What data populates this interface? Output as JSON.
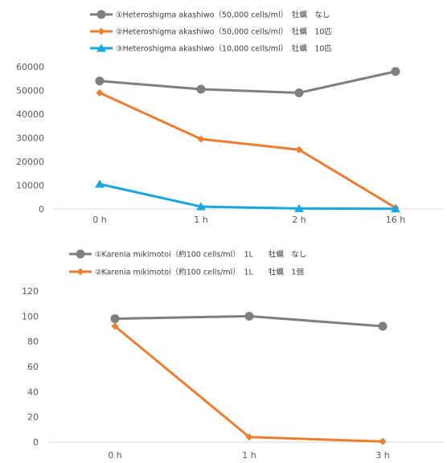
{
  "chart_data": [
    {
      "type": "line",
      "categories": [
        "0 h",
        "1 h",
        "2 h",
        "16 h"
      ],
      "ylim": [
        0,
        60000
      ],
      "yticks": [
        "0",
        "10000",
        "20000",
        "30000",
        "40000",
        "50000",
        "60000"
      ],
      "legend_position": "top",
      "grid": false,
      "series": [
        {
          "name": "①Heteroshigma akashiwo（50,000 cells/ml）　牡蠣　なし",
          "values": [
            54000,
            50500,
            49000,
            58000
          ],
          "color": "#7f7f7f",
          "marker": "circle"
        },
        {
          "name": "②Heteroshigma akashiwo（50,000 cells/ml）　牡蠣　10匹",
          "values": [
            49000,
            29500,
            25000,
            500
          ],
          "color": "#ed7d31",
          "marker": "diamond"
        },
        {
          "name": "③Heteroshigma akashiwo（10,000 cells/ml）　牡蠣　10匹",
          "values": [
            10500,
            1000,
            200,
            100
          ],
          "color": "#1aa7dd",
          "marker": "triangle"
        }
      ]
    },
    {
      "type": "line",
      "categories": [
        "0 h",
        "1 h",
        "3 h"
      ],
      "ylim": [
        0,
        120
      ],
      "yticks": [
        "0",
        "20",
        "40",
        "60",
        "80",
        "100",
        "120"
      ],
      "legend_position": "top",
      "grid": false,
      "series": [
        {
          "name": "①Karenia mikimotoi（約100 cells/ml）　1L　　牡蠣　なし",
          "values": [
            98,
            100,
            92
          ],
          "color": "#7f7f7f",
          "marker": "circle"
        },
        {
          "name": "②Karenia mikimotoi（約100 cells/ml）　1L　　牡蠣　1個",
          "values": [
            92,
            4,
            0.5
          ],
          "color": "#ed7d31",
          "marker": "diamond"
        }
      ]
    }
  ]
}
